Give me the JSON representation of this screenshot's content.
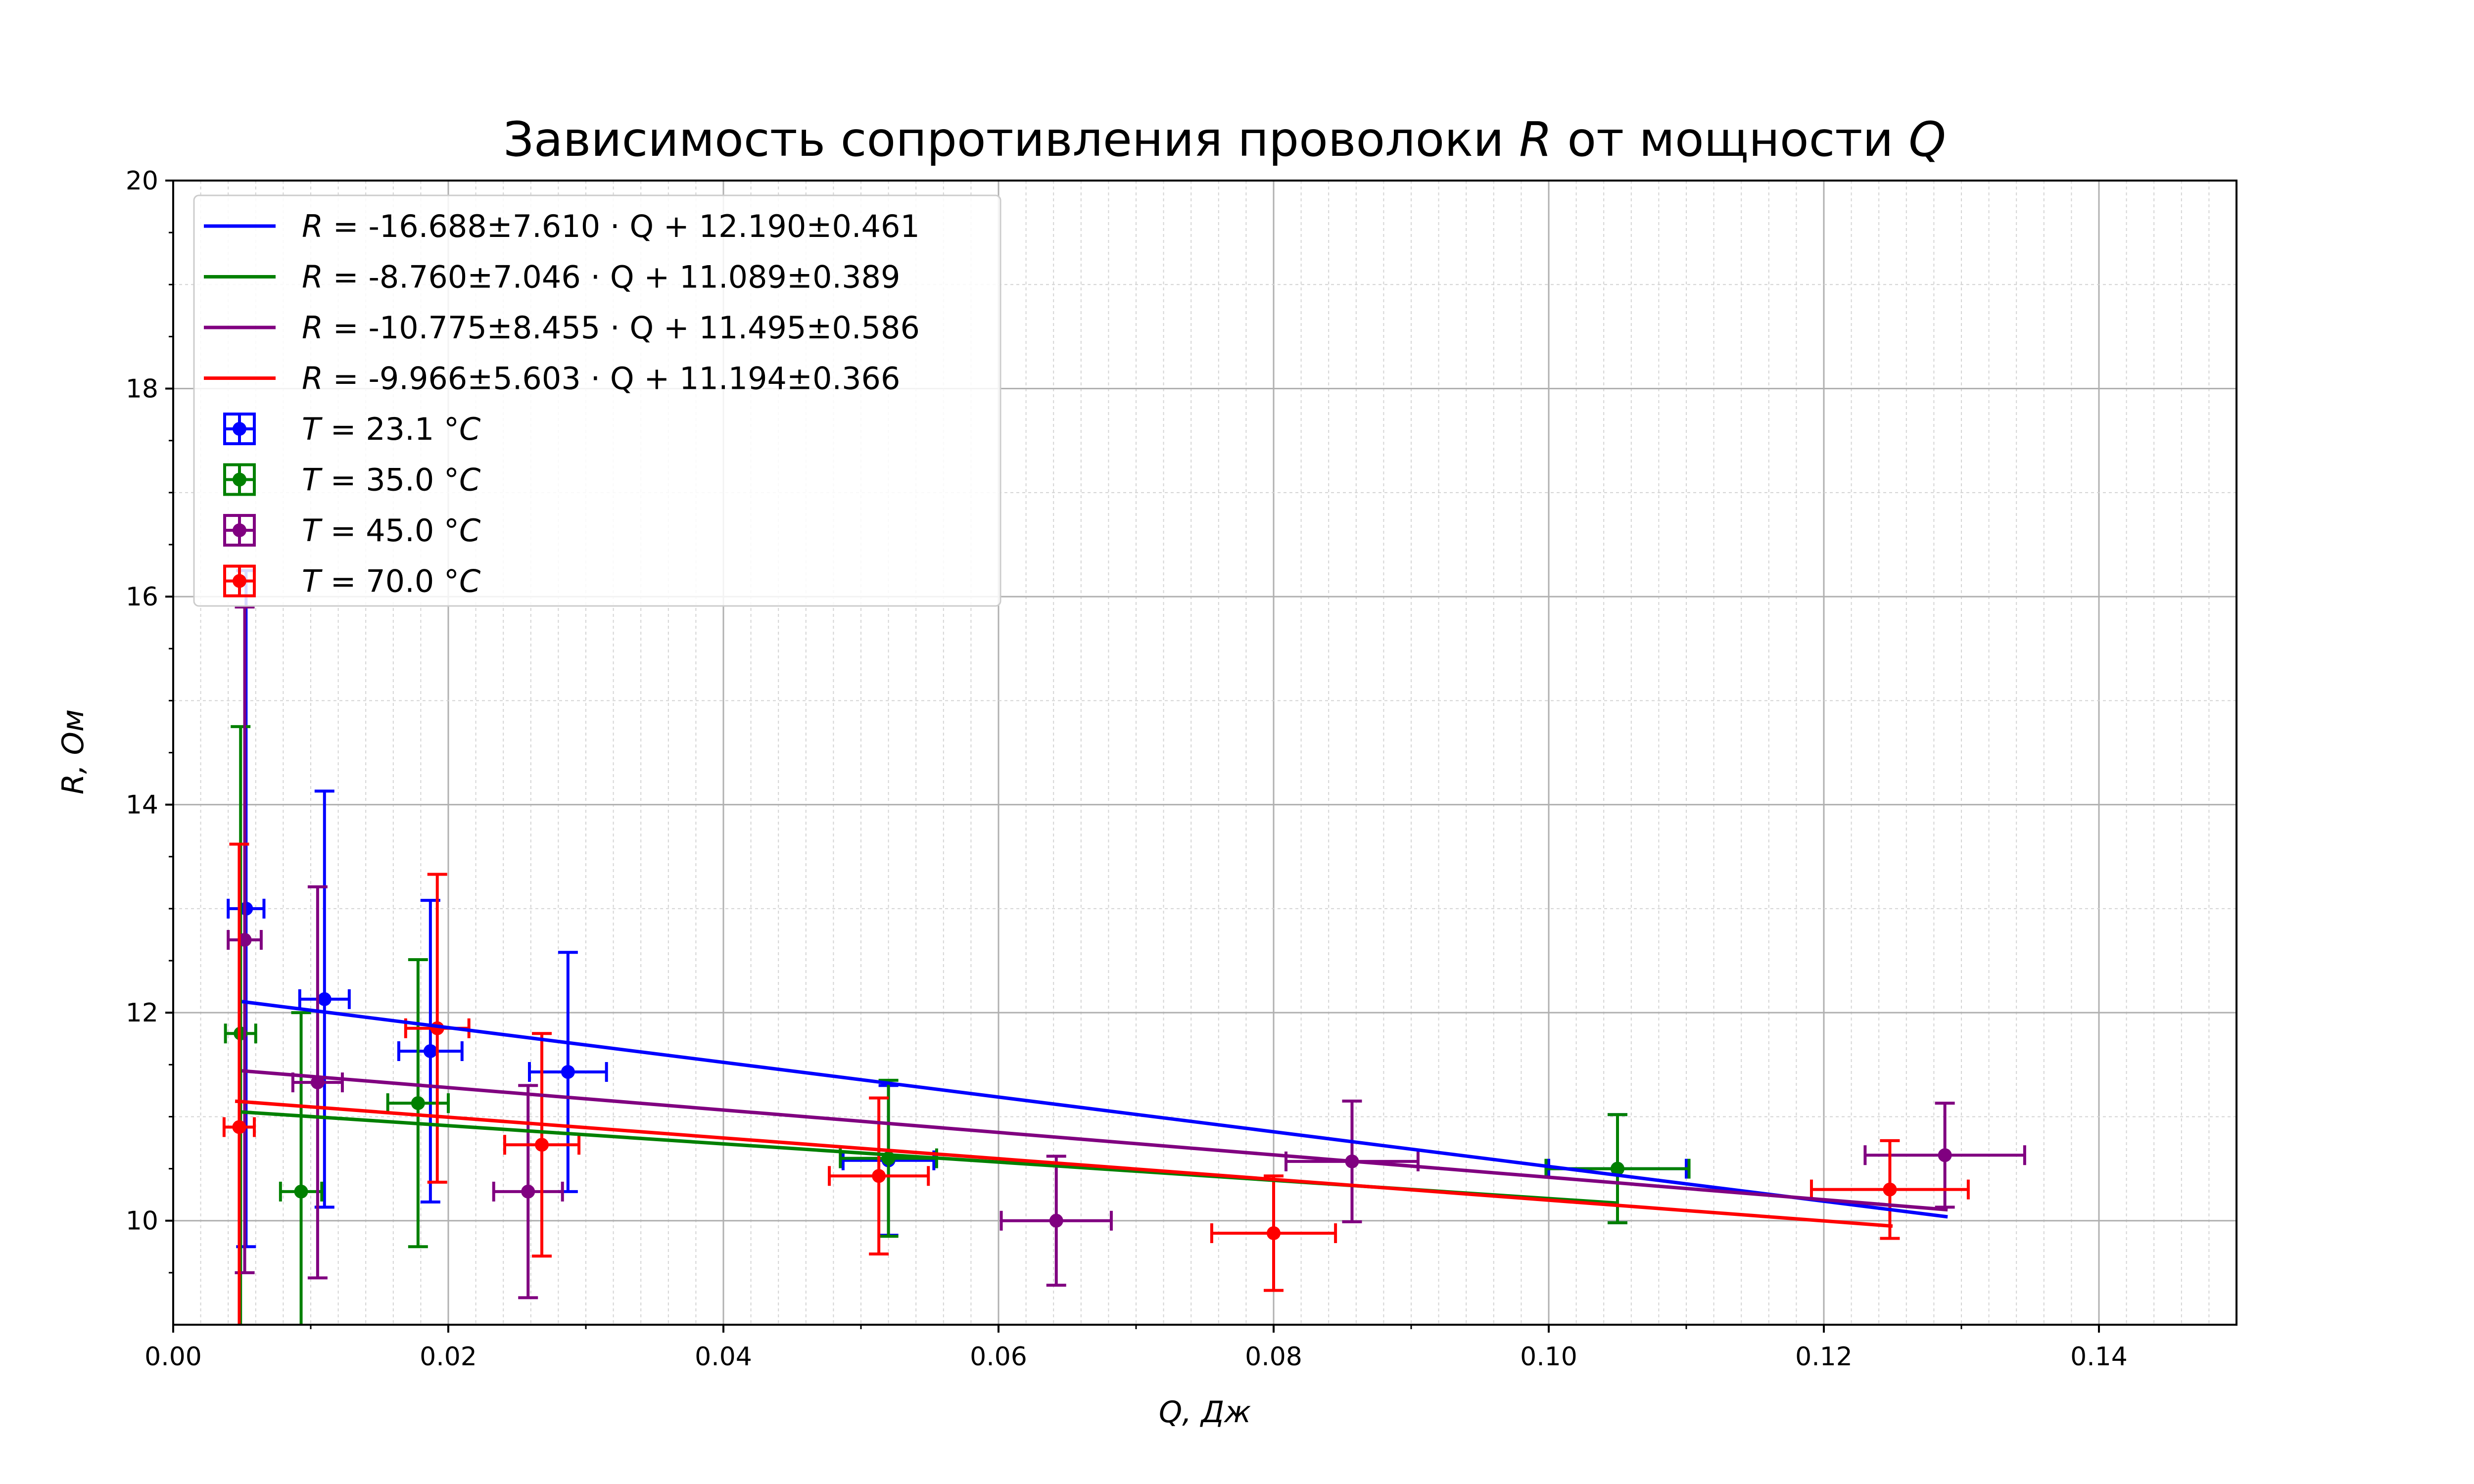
{
  "chart_data": {
    "type": "scatter",
    "title": "Зависимость сопротивления проволоки R от мощности Q",
    "xlabel": "Q, Дж",
    "ylabel": "R, Ом",
    "xlim": [
      0.0,
      0.15
    ],
    "ylim": [
      9.0,
      20.0
    ],
    "x_ticks": [
      "0.00",
      "0.02",
      "0.04",
      "0.06",
      "0.08",
      "0.10",
      "0.12",
      "0.14"
    ],
    "y_ticks": [
      "10",
      "12",
      "14",
      "16",
      "18",
      "20"
    ],
    "x_tick_values": [
      0.0,
      0.02,
      0.04,
      0.06,
      0.08,
      0.1,
      0.12,
      0.14
    ],
    "y_tick_values": [
      10,
      12,
      14,
      16,
      18,
      20
    ],
    "grid": "major and minor",
    "legend_position": "top-left",
    "fits": [
      {
        "label": "R = -16.688±7.610 · Q + 12.190±0.461",
        "color": "#0000ff",
        "slope": -16.688,
        "intercept": 12.19,
        "x_range": [
          0.005,
          0.129
        ]
      },
      {
        "label": "R = -8.760±7.046 · Q + 11.089±0.389",
        "color": "#008000",
        "slope": -8.76,
        "intercept": 11.089,
        "x_range": [
          0.005,
          0.105
        ]
      },
      {
        "label": "R = -10.775±8.455 · Q + 11.495±0.586",
        "color": "#800080",
        "slope": -10.775,
        "intercept": 11.495,
        "x_range": [
          0.005,
          0.129
        ]
      },
      {
        "label": "R = -9.966±5.603 · Q + 11.194±0.366",
        "color": "#ff0000",
        "slope": -9.966,
        "intercept": 11.194,
        "x_range": [
          0.0045,
          0.125
        ]
      }
    ],
    "series": [
      {
        "label": "T = 23.1 °C",
        "color": "#0000ff",
        "points": [
          {
            "x": 0.0053,
            "y": 13.0,
            "xerr": 0.0013,
            "yerr": 3.25
          },
          {
            "x": 0.011,
            "y": 12.13,
            "xerr": 0.0018,
            "yerr": 2.0
          },
          {
            "x": 0.0187,
            "y": 11.63,
            "xerr": 0.0023,
            "yerr": 1.45
          },
          {
            "x": 0.0287,
            "y": 11.43,
            "xerr": 0.0028,
            "yerr": 1.15
          },
          {
            "x": 0.052,
            "y": 10.58,
            "xerr": 0.0033,
            "yerr": 0.72
          },
          {
            "x": 0.105,
            "y": 10.5,
            "xerr": 0.005,
            "yerr": 0.52
          }
        ]
      },
      {
        "label": "T = 35.0 °C",
        "color": "#008000",
        "points": [
          {
            "x": 0.0049,
            "y": 11.8,
            "xerr": 0.0011,
            "yerr": 2.95
          },
          {
            "x": 0.0093,
            "y": 10.28,
            "xerr": 0.0015,
            "yerr": 1.72
          },
          {
            "x": 0.0178,
            "y": 11.13,
            "xerr": 0.0022,
            "yerr": 1.38
          },
          {
            "x": 0.052,
            "y": 10.6,
            "xerr": 0.0035,
            "yerr": 0.75
          },
          {
            "x": 0.105,
            "y": 10.5,
            "xerr": 0.0052,
            "yerr": 0.52
          }
        ]
      },
      {
        "label": "T = 45.0 °C",
        "color": "#800080",
        "points": [
          {
            "x": 0.0052,
            "y": 12.7,
            "xerr": 0.0012,
            "yerr": 3.2
          },
          {
            "x": 0.0105,
            "y": 11.33,
            "xerr": 0.0018,
            "yerr": 1.88
          },
          {
            "x": 0.0258,
            "y": 10.28,
            "xerr": 0.0025,
            "yerr": 1.02
          },
          {
            "x": 0.0642,
            "y": 10.0,
            "xerr": 0.004,
            "yerr": 0.62
          },
          {
            "x": 0.0857,
            "y": 10.57,
            "xerr": 0.0048,
            "yerr": 0.58
          },
          {
            "x": 0.1288,
            "y": 10.63,
            "xerr": 0.0058,
            "yerr": 0.5
          }
        ]
      },
      {
        "label": "T = 70.0 °C",
        "color": "#ff0000",
        "points": [
          {
            "x": 0.0048,
            "y": 10.9,
            "xerr": 0.0011,
            "yerr": 2.72
          },
          {
            "x": 0.0192,
            "y": 11.85,
            "xerr": 0.0023,
            "yerr": 1.48
          },
          {
            "x": 0.0268,
            "y": 10.73,
            "xerr": 0.0027,
            "yerr": 1.07
          },
          {
            "x": 0.0513,
            "y": 10.43,
            "xerr": 0.0036,
            "yerr": 0.75
          },
          {
            "x": 0.08,
            "y": 9.88,
            "xerr": 0.0045,
            "yerr": 0.55
          },
          {
            "x": 0.1248,
            "y": 10.3,
            "xerr": 0.0057,
            "yerr": 0.47
          }
        ]
      }
    ]
  }
}
